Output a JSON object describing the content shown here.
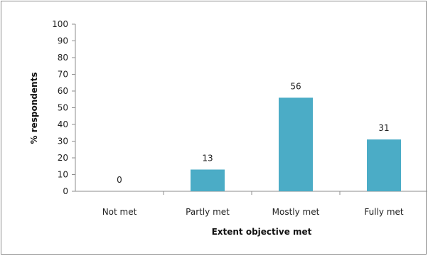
{
  "chart_data": {
    "type": "bar",
    "categories": [
      "Not met",
      "Partly met",
      "Mostly met",
      "Fully met"
    ],
    "values": [
      0,
      13,
      56,
      31
    ],
    "data_labels": [
      "0",
      "13",
      "56",
      "31"
    ],
    "xlabel": "Extent objective met",
    "ylabel": "% respondents",
    "ylim": [
      0,
      100
    ],
    "yticks": [
      0,
      10,
      20,
      30,
      40,
      50,
      60,
      70,
      80,
      90,
      100
    ],
    "grid": false,
    "legend": "none",
    "bar_color": "#4bacc6"
  }
}
